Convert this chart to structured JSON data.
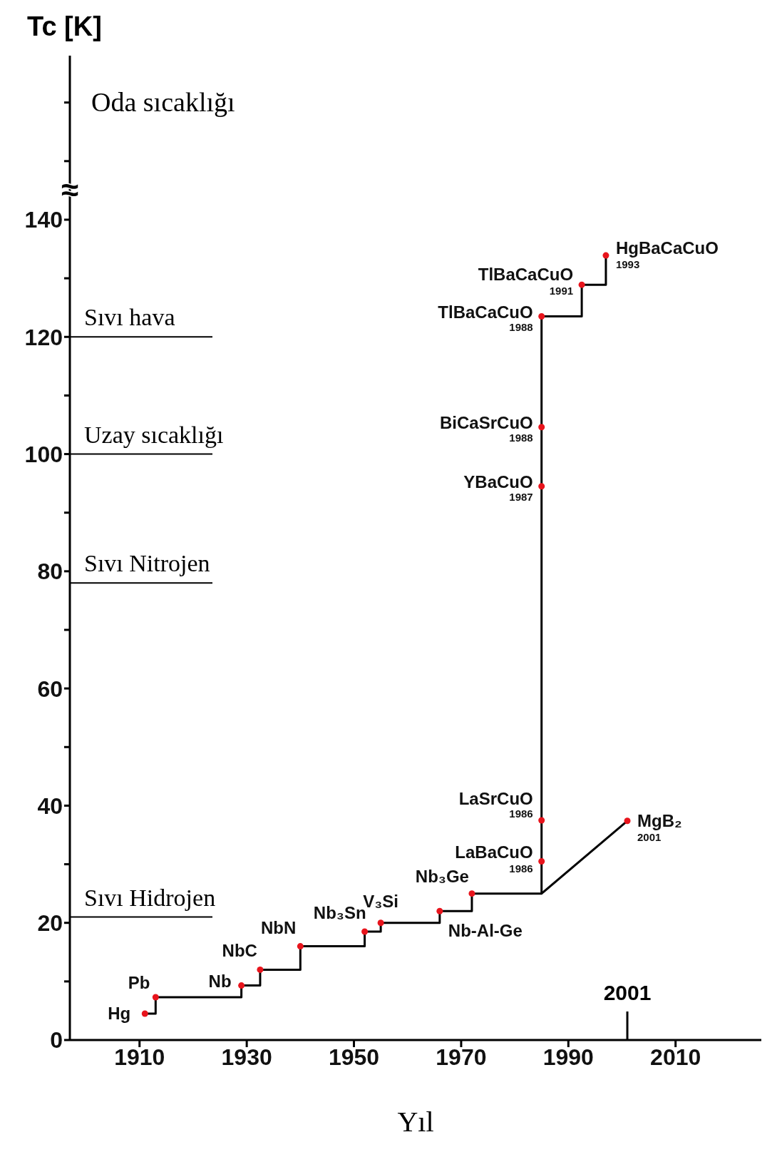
{
  "chart_data": {
    "type": "step",
    "xlabel": "Yıl",
    "ylabel": "Tc [K]",
    "xlim": [
      1897,
      2026
    ],
    "xticks": [
      1910,
      1930,
      1950,
      1970,
      1990,
      2010
    ],
    "ylim": [
      0,
      168
    ],
    "yticks": [
      0,
      {
        "value": 10,
        "label": null
      },
      20,
      {
        "value": 30,
        "label": null
      },
      40,
      {
        "value": 50,
        "label": null
      },
      60,
      {
        "value": 70,
        "label": null
      },
      80,
      {
        "value": 90,
        "label": null
      },
      100,
      {
        "value": 110,
        "label": null
      },
      120,
      {
        "value": 130,
        "label": null
      },
      140,
      {
        "value": 150,
        "label": null
      },
      {
        "value": 160,
        "label": null
      }
    ],
    "grid": false,
    "series": [
      {
        "type": "step",
        "color": "#000000",
        "marker": "none",
        "x": [
          1911,
          1913,
          1929,
          1932.5,
          1940,
          1952,
          1955,
          1966,
          1972,
          1985,
          1985,
          1985,
          1985,
          1985,
          1992.5,
          1997
        ],
        "values": [
          4.5,
          7.3,
          9.3,
          12,
          16,
          18.5,
          20,
          22,
          25,
          30.5,
          37.5,
          94.5,
          104.6,
          123.5,
          128.9,
          133.9
        ]
      },
      {
        "type": "line",
        "color": "#000000",
        "marker": "none",
        "x": [
          1985,
          2001
        ],
        "values": [
          25,
          37.4
        ]
      },
      {
        "type": "scatter",
        "color": "#e8141c",
        "marker": "circle",
        "x": [
          1911,
          1913,
          1929,
          1932.5,
          1940,
          1952,
          1955,
          1966,
          1972,
          1985,
          1985,
          1985,
          1985,
          1985,
          1992.5,
          1997,
          2001
        ],
        "values": [
          4.5,
          7.3,
          9.3,
          12,
          16,
          18.5,
          20,
          22,
          25,
          30.5,
          37.5,
          94.5,
          104.6,
          123.5,
          128.9,
          133.9,
          37.4
        ]
      }
    ],
    "ref_lines": [
      {
        "axis": "y",
        "value": 120,
        "label": "Sıvı hava"
      },
      {
        "axis": "y",
        "value": 100,
        "label": "Uzay sıcaklığı"
      },
      {
        "axis": "y",
        "value": 78,
        "label": "Sıvı Nitrojen"
      },
      {
        "axis": "y",
        "value": 21,
        "label": "Sıvı Hidrojen"
      },
      {
        "axis": "x",
        "value": 2001,
        "label": "2001"
      }
    ],
    "annotations": [
      {
        "text": "Hg",
        "x": 1911,
        "y": 4.5
      },
      {
        "text": "Pb",
        "x": 1913,
        "y": 7.3
      },
      {
        "text": "Nb",
        "x": 1929,
        "y": 9.3
      },
      {
        "text": "NbC",
        "x": 1932.5,
        "y": 12
      },
      {
        "text": "NbN",
        "x": 1940,
        "y": 16
      },
      {
        "text": "Nb₃Sn",
        "x": 1952,
        "y": 18.5
      },
      {
        "text": "V₃Si",
        "x": 1955,
        "y": 20
      },
      {
        "text": "Nb-Al-Ge",
        "x": 1966,
        "y": 22
      },
      {
        "text": "Nb₃Ge",
        "x": 1972,
        "y": 25
      },
      {
        "text": "LaBaCuO",
        "x": 1985,
        "y": 30.5
      },
      {
        "text": "1986",
        "x": 1985,
        "y": 30.5
      },
      {
        "text": "LaSrCuO",
        "x": 1985,
        "y": 37.5
      },
      {
        "text": "1986",
        "x": 1985,
        "y": 37.5
      },
      {
        "text": "YBaCuO",
        "x": 1985,
        "y": 94.5
      },
      {
        "text": "1987",
        "x": 1985,
        "y": 94.5
      },
      {
        "text": "BiCaSrCuO",
        "x": 1985,
        "y": 104.6
      },
      {
        "text": "1988",
        "x": 1985,
        "y": 104.6
      },
      {
        "text": "TlBaCaCuO",
        "x": 1985,
        "y": 123.5
      },
      {
        "text": "1988",
        "x": 1985,
        "y": 123.5
      },
      {
        "text": "TlBaCaCuO",
        "x": 1992.5,
        "y": 128.9
      },
      {
        "text": "1991",
        "x": 1992.5,
        "y": 128.9
      },
      {
        "text": "HgBaCaCuO",
        "x": 1997,
        "y": 133.9
      },
      {
        "text": "1993",
        "x": 1997,
        "y": 133.9
      },
      {
        "text": "MgB₂",
        "x": 2001,
        "y": 37.4
      },
      {
        "text": "2001",
        "x": 2001,
        "y": 37.4
      },
      "Oda sıcaklığı",
      "≈"
    ]
  }
}
